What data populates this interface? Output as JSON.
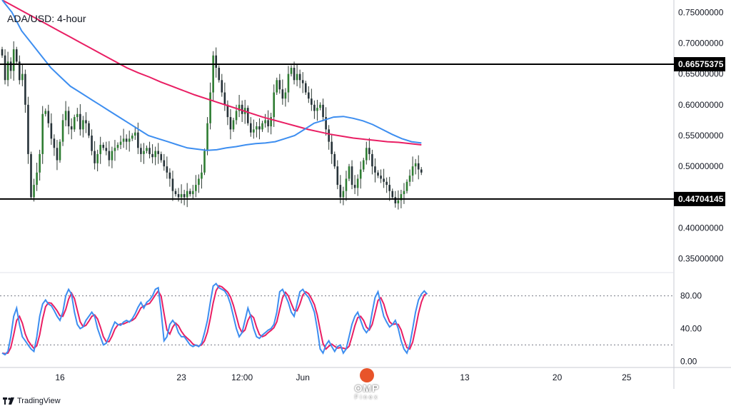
{
  "chart_data": {
    "type": "candlestick",
    "title": "ADA/USD: 4-hour",
    "price_axis": {
      "min": 0.33,
      "max": 0.77,
      "ticks": [
        "0.75000000",
        "0.70000000",
        "0.65000000",
        "0.60000000",
        "0.55000000",
        "0.50000000",
        "0.45000000",
        "0.40000000",
        "0.35000000"
      ],
      "tick_values": [
        0.75,
        0.7,
        0.65,
        0.6,
        0.55,
        0.5,
        0.45,
        0.4,
        0.35
      ]
    },
    "horizontal_levels": [
      {
        "value": 0.66575375,
        "label": "0.66575375"
      },
      {
        "value": 0.44704145,
        "label": "0.44704145"
      }
    ],
    "x_axis_labels": [
      {
        "label": "16",
        "bar": 20
      },
      {
        "label": "23",
        "bar": 62
      },
      {
        "label": "12:00",
        "bar": 83
      },
      {
        "label": "Jun",
        "bar": 104
      },
      {
        "label": "13",
        "bar": 160
      },
      {
        "label": "20",
        "bar": 192
      },
      {
        "label": "25",
        "bar": 216
      }
    ],
    "closes": [
      0.68,
      0.64,
      0.67,
      0.655,
      0.69,
      0.67,
      0.64,
      0.65,
      0.6,
      0.52,
      0.45,
      0.47,
      0.49,
      0.52,
      0.585,
      0.59,
      0.57,
      0.545,
      0.53,
      0.51,
      0.54,
      0.575,
      0.59,
      0.565,
      0.56,
      0.58,
      0.585,
      0.56,
      0.575,
      0.57,
      0.55,
      0.525,
      0.505,
      0.52,
      0.535,
      0.53,
      0.525,
      0.51,
      0.525,
      0.53,
      0.535,
      0.54,
      0.545,
      0.54,
      0.545,
      0.55,
      0.555,
      0.53,
      0.52,
      0.525,
      0.53,
      0.52,
      0.515,
      0.525,
      0.52,
      0.51,
      0.5,
      0.49,
      0.48,
      0.46,
      0.455,
      0.45,
      0.455,
      0.45,
      0.46,
      0.455,
      0.46,
      0.47,
      0.48,
      0.49,
      0.525,
      0.57,
      0.62,
      0.68,
      0.66,
      0.64,
      0.62,
      0.6,
      0.58,
      0.56,
      0.575,
      0.59,
      0.6,
      0.585,
      0.595,
      0.57,
      0.555,
      0.56,
      0.565,
      0.56,
      0.57,
      0.575,
      0.565,
      0.58,
      0.62,
      0.64,
      0.625,
      0.61,
      0.62,
      0.65,
      0.66,
      0.64,
      0.65,
      0.64,
      0.635,
      0.62,
      0.61,
      0.6,
      0.59,
      0.595,
      0.6,
      0.58,
      0.56,
      0.54,
      0.52,
      0.5,
      0.47,
      0.45,
      0.46,
      0.48,
      0.5,
      0.47,
      0.465,
      0.48,
      0.495,
      0.51,
      0.53,
      0.52,
      0.5,
      0.49,
      0.485,
      0.48,
      0.475,
      0.47,
      0.46,
      0.45,
      0.44,
      0.445,
      0.455,
      0.46,
      0.475,
      0.485,
      0.5,
      0.505,
      0.495,
      0.49
    ],
    "sma_fast": {
      "color": "#3d8ef0",
      "values": [
        0.77,
        0.75,
        0.72,
        0.7,
        0.68,
        0.66,
        0.645,
        0.63,
        0.62,
        0.61,
        0.6,
        0.59,
        0.58,
        0.57,
        0.56,
        0.55,
        0.545,
        0.54,
        0.535,
        0.53,
        0.528,
        0.526,
        0.527,
        0.53,
        0.532,
        0.535,
        0.537,
        0.538,
        0.54,
        0.545,
        0.55,
        0.56,
        0.57,
        0.575,
        0.58,
        0.581,
        0.578,
        0.574,
        0.568,
        0.56,
        0.552,
        0.545,
        0.54,
        0.538
      ]
    },
    "sma_slow": {
      "color": "#e91e63",
      "values": [
        0.77,
        0.76,
        0.75,
        0.74,
        0.73,
        0.72,
        0.71,
        0.7,
        0.69,
        0.68,
        0.67,
        0.66,
        0.652,
        0.645,
        0.637,
        0.63,
        0.623,
        0.616,
        0.61,
        0.604,
        0.598,
        0.592,
        0.586,
        0.58,
        0.575,
        0.57,
        0.565,
        0.56,
        0.556,
        0.552,
        0.549,
        0.546,
        0.544,
        0.542,
        0.54,
        0.539,
        0.537,
        0.535
      ]
    },
    "oscillator": {
      "type": "stochastic",
      "ticks": [
        "80.00",
        "40.00",
        "0.00"
      ],
      "tick_values": [
        80,
        40,
        0
      ],
      "levels": [
        80,
        20
      ],
      "k_color": "#3d8ef0",
      "d_color": "#e91e63",
      "k_values": [
        10,
        8,
        12,
        30,
        55,
        65,
        45,
        30,
        25,
        20,
        15,
        12,
        30,
        55,
        70,
        75,
        70,
        68,
        62,
        55,
        50,
        60,
        80,
        88,
        82,
        60,
        45,
        40,
        42,
        50,
        55,
        60,
        55,
        40,
        30,
        20,
        22,
        30,
        40,
        48,
        45,
        44,
        48,
        50,
        48,
        52,
        58,
        66,
        72,
        65,
        72,
        75,
        80,
        88,
        90,
        60,
        25,
        30,
        45,
        50,
        45,
        35,
        30,
        30,
        25,
        20,
        18,
        20,
        18,
        22,
        35,
        50,
        72,
        92,
        95,
        90,
        88,
        86,
        80,
        70,
        55,
        40,
        30,
        35,
        50,
        65,
        55,
        40,
        30,
        28,
        32,
        35,
        38,
        40,
        45,
        60,
        85,
        88,
        80,
        72,
        60,
        55,
        70,
        85,
        88,
        82,
        78,
        70,
        60,
        40,
        15,
        10,
        20,
        25,
        18,
        12,
        18,
        20,
        10,
        15,
        30,
        45,
        55,
        60,
        50,
        40,
        35,
        40,
        60,
        78,
        85,
        70,
        55,
        48,
        42,
        45,
        50,
        40,
        25,
        15,
        10,
        20,
        40,
        60,
        75,
        82,
        86,
        82
      ]
    },
    "grid": false,
    "legend": "none"
  },
  "footer": {
    "tradingview_label": "TradingView",
    "brand_name": "OMP",
    "brand_sub": "Finex"
  }
}
